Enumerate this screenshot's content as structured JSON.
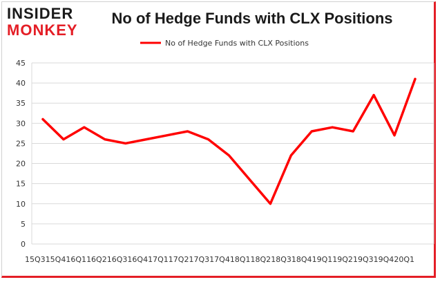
{
  "logo": {
    "line1": "INSIDER",
    "line2": "MONKEY"
  },
  "chart_data": {
    "type": "line",
    "title": "No of Hedge Funds with CLX Positions",
    "xlabel": "",
    "ylabel": "",
    "ylim": [
      0,
      45
    ],
    "yticks": [
      0,
      5,
      10,
      15,
      20,
      25,
      30,
      35,
      40,
      45
    ],
    "grid": true,
    "legend_position": "top-center",
    "categories": [
      "15Q3",
      "15Q4",
      "16Q1",
      "16Q2",
      "16Q3",
      "16Q4",
      "17Q1",
      "17Q2",
      "17Q3",
      "17Q4",
      "18Q1",
      "18Q2",
      "18Q3",
      "18Q4",
      "19Q1",
      "19Q2",
      "19Q3",
      "19Q4",
      "20Q1"
    ],
    "series": [
      {
        "name": "No of Hedge Funds with CLX Positions",
        "color": "#ff0000",
        "values": [
          31,
          26,
          29,
          26,
          25,
          26,
          27,
          28,
          26,
          22,
          16,
          10,
          22,
          28,
          29,
          28,
          37,
          27,
          41
        ]
      }
    ]
  }
}
